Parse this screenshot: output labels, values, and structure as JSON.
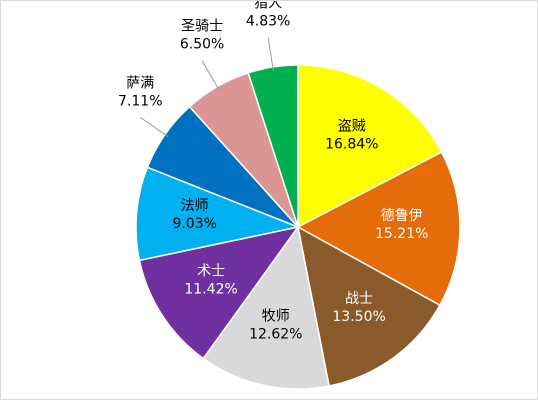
{
  "chart_data": {
    "type": "pie",
    "title": "",
    "legend": "none",
    "slices": [
      {
        "label": "盗贼",
        "percent_text": "16.84%",
        "value": 16.84,
        "color": "#ffff00",
        "label_color": "#000000"
      },
      {
        "label": "德鲁伊",
        "percent_text": "15.21%",
        "value": 15.21,
        "color": "#e46c0a",
        "label_color": "#ffffff"
      },
      {
        "label": "战士",
        "percent_text": "13.50%",
        "value": 13.5,
        "color": "#8b5a2b",
        "label_color": "#ffffff"
      },
      {
        "label": "牧师",
        "percent_text": "12.62%",
        "value": 12.62,
        "color": "#d9d9d9",
        "label_color": "#000000"
      },
      {
        "label": "术士",
        "percent_text": "11.42%",
        "value": 11.42,
        "color": "#7030a0",
        "label_color": "#ffffff"
      },
      {
        "label": "法师",
        "percent_text": "9.03%",
        "value": 9.03,
        "color": "#00b0f0",
        "label_color": "#000000"
      },
      {
        "label": "萨满",
        "percent_text": "7.11%",
        "value": 7.11,
        "color": "#0070c0",
        "label_color": "#000000"
      },
      {
        "label": "圣骑士",
        "percent_text": "6.50%",
        "value": 6.5,
        "color": "#d99694",
        "label_color": "#000000"
      },
      {
        "label": "猎人",
        "percent_text": "4.83%",
        "value": 4.83,
        "color": "#00b050",
        "label_color": "#000000"
      }
    ]
  }
}
